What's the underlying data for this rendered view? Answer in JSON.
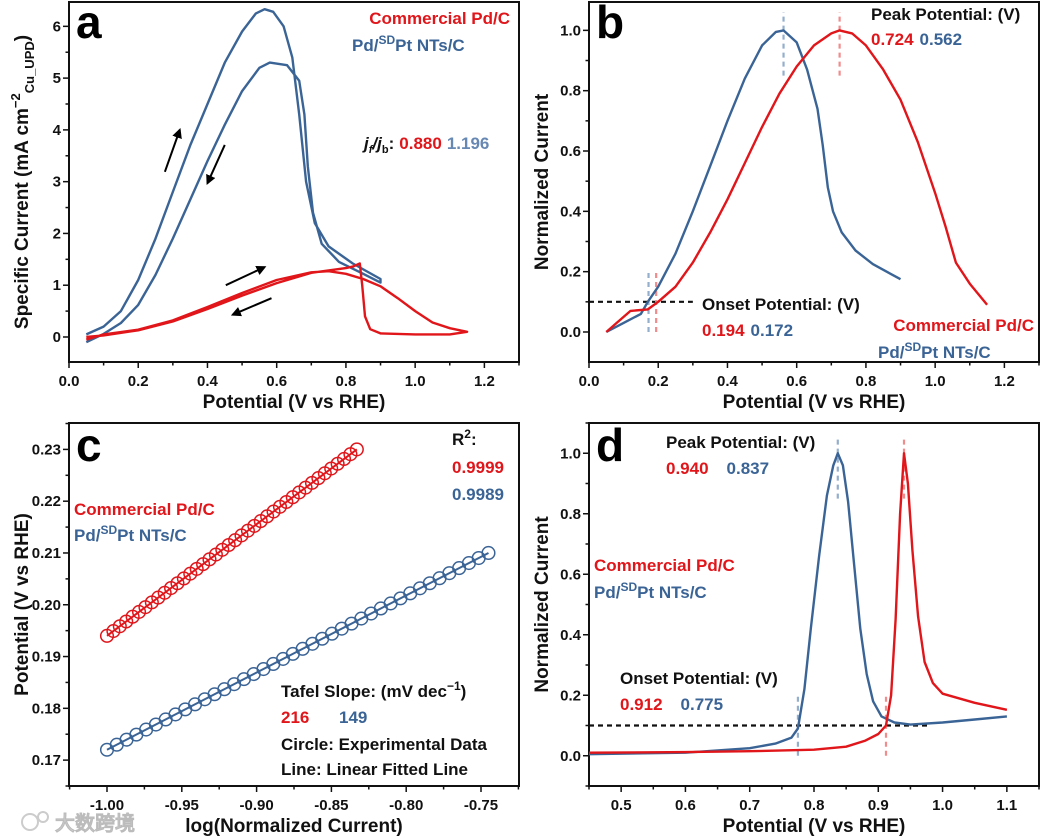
{
  "colors": {
    "red": "#e0161b",
    "blue": "#3b6496",
    "red_dash": "#f08c8c",
    "blue_dash": "#94aecd",
    "black": "#111111"
  },
  "watermark": "大数跨境",
  "chart_data": [
    {
      "id": "a",
      "type": "line",
      "panel_label": "a",
      "xlabel": "Potential (V vs RHE)",
      "ylabel": {
        "main": "Specific Current (mA cm",
        "sup": "−2",
        "sub": "Cu_UPD",
        "close": ")"
      },
      "xlim": [
        0,
        1.3
      ],
      "ylim": [
        -0.483,
        6.47
      ],
      "xticks": [
        "0.0",
        "0.2",
        "0.4",
        "0.6",
        "0.8",
        "1.0",
        "1.2"
      ],
      "yticks": [
        "0",
        "1",
        "2",
        "3",
        "4",
        "5",
        "6"
      ],
      "legend": [
        {
          "text": "Commercial Pd/C",
          "color": "red"
        },
        {
          "pre": "Pd/",
          "sup": "SD",
          "post": "Pt NTs/C",
          "color": "blue"
        }
      ],
      "ratio": {
        "j": "j",
        "f": "f",
        "slash": "/",
        "b": "b",
        "colon": ":",
        "values": [
          "0.880",
          "1.196"
        ]
      },
      "series": [
        {
          "name": "Pd/SDPt NTs/C",
          "color": "blue",
          "points": [
            [
              0.05,
              0.05
            ],
            [
              0.1,
              0.2
            ],
            [
              0.15,
              0.5
            ],
            [
              0.2,
              1.1
            ],
            [
              0.25,
              1.9
            ],
            [
              0.3,
              2.8
            ],
            [
              0.35,
              3.7
            ],
            [
              0.4,
              4.5
            ],
            [
              0.45,
              5.3
            ],
            [
              0.5,
              5.9
            ],
            [
              0.54,
              6.25
            ],
            [
              0.565,
              6.33
            ],
            [
              0.59,
              6.28
            ],
            [
              0.62,
              6.0
            ],
            [
              0.645,
              5.4
            ],
            [
              0.665,
              4.3
            ],
            [
              0.685,
              3.0
            ],
            [
              0.71,
              2.2
            ],
            [
              0.75,
              1.75
            ],
            [
              0.82,
              1.42
            ],
            [
              0.9,
              1.12
            ],
            [
              0.9,
              1.05
            ],
            [
              0.85,
              1.22
            ],
            [
              0.78,
              1.45
            ],
            [
              0.73,
              1.8
            ],
            [
              0.705,
              2.4
            ],
            [
              0.69,
              3.3
            ],
            [
              0.68,
              4.3
            ],
            [
              0.665,
              4.95
            ],
            [
              0.63,
              5.25
            ],
            [
              0.58,
              5.3
            ],
            [
              0.55,
              5.2
            ],
            [
              0.5,
              4.75
            ],
            [
              0.45,
              4.1
            ],
            [
              0.4,
              3.4
            ],
            [
              0.35,
              2.65
            ],
            [
              0.3,
              1.9
            ],
            [
              0.25,
              1.2
            ],
            [
              0.2,
              0.62
            ],
            [
              0.15,
              0.27
            ],
            [
              0.1,
              0.06
            ],
            [
              0.05,
              -0.1
            ]
          ]
        },
        {
          "name": "Commercial Pd/C",
          "color": "red",
          "points": [
            [
              0.05,
              -0.05
            ],
            [
              0.1,
              0.05
            ],
            [
              0.2,
              0.14
            ],
            [
              0.3,
              0.32
            ],
            [
              0.4,
              0.58
            ],
            [
              0.5,
              0.85
            ],
            [
              0.6,
              1.1
            ],
            [
              0.7,
              1.25
            ],
            [
              0.75,
              1.27
            ],
            [
              0.8,
              1.22
            ],
            [
              0.85,
              1.12
            ],
            [
              0.9,
              0.98
            ],
            [
              0.95,
              0.75
            ],
            [
              1.0,
              0.5
            ],
            [
              1.05,
              0.28
            ],
            [
              1.1,
              0.17
            ],
            [
              1.15,
              0.1
            ],
            [
              1.1,
              0.05
            ],
            [
              1.0,
              0.05
            ],
            [
              0.9,
              0.07
            ],
            [
              0.87,
              0.15
            ],
            [
              0.855,
              0.4
            ],
            [
              0.847,
              1.0
            ],
            [
              0.84,
              1.42
            ],
            [
              0.82,
              1.36
            ],
            [
              0.8,
              1.33
            ],
            [
              0.7,
              1.24
            ],
            [
              0.6,
              1.04
            ],
            [
              0.5,
              0.8
            ],
            [
              0.4,
              0.54
            ],
            [
              0.3,
              0.3
            ],
            [
              0.2,
              0.13
            ],
            [
              0.1,
              0.03
            ],
            [
              0.05,
              0.0
            ]
          ]
        }
      ],
      "arrows": [
        [
          [
            0.277,
            3.19
          ],
          [
            0.32,
            4.0
          ]
        ],
        [
          [
            0.45,
            3.71
          ],
          [
            0.4,
            2.97
          ]
        ],
        [
          [
            0.453,
            1.0
          ],
          [
            0.565,
            1.35
          ]
        ],
        [
          [
            0.585,
            0.75
          ],
          [
            0.473,
            0.43
          ]
        ]
      ]
    },
    {
      "id": "b",
      "type": "line",
      "panel_label": "b",
      "xlabel": "Potential (V vs RHE)",
      "ylabel": "Normalized Current",
      "xlim": [
        0,
        1.3
      ],
      "ylim": [
        -0.0995,
        1.094
      ],
      "xticks": [
        "0.0",
        "0.2",
        "0.4",
        "0.6",
        "0.8",
        "1.0",
        "1.2"
      ],
      "yticks": [
        "0.0",
        "0.2",
        "0.4",
        "0.6",
        "0.8",
        "1.0"
      ],
      "legend": [
        {
          "text": "Commercial Pd/C",
          "color": "red"
        },
        {
          "pre": "Pd/",
          "sup": "SD",
          "post": "Pt NTs/C",
          "color": "blue"
        }
      ],
      "peak": {
        "label": "Peak Potential: (V)",
        "values": [
          "0.724",
          "0.562"
        ]
      },
      "onset": {
        "label": "Onset Potential: (V)",
        "values": [
          "0.194",
          "0.172"
        ]
      },
      "onset_threshold": 0.1,
      "series": [
        {
          "name": "Pd/SDPt NTs/C",
          "color": "blue",
          "points": [
            [
              0.05,
              0
            ],
            [
              0.1,
              0.03
            ],
            [
              0.15,
              0.06
            ],
            [
              0.17,
              0.1
            ],
            [
              0.2,
              0.15
            ],
            [
              0.25,
              0.26
            ],
            [
              0.3,
              0.4
            ],
            [
              0.35,
              0.55
            ],
            [
              0.4,
              0.7
            ],
            [
              0.45,
              0.84
            ],
            [
              0.5,
              0.95
            ],
            [
              0.54,
              0.995
            ],
            [
              0.562,
              1.0
            ],
            [
              0.6,
              0.96
            ],
            [
              0.63,
              0.87
            ],
            [
              0.66,
              0.74
            ],
            [
              0.675,
              0.62
            ],
            [
              0.69,
              0.48
            ],
            [
              0.705,
              0.4
            ],
            [
              0.73,
              0.33
            ],
            [
              0.77,
              0.27
            ],
            [
              0.82,
              0.225
            ],
            [
              0.86,
              0.2
            ],
            [
              0.9,
              0.175
            ]
          ]
        },
        {
          "name": "Commercial Pd/C",
          "color": "red",
          "points": [
            [
              0.05,
              0
            ],
            [
              0.08,
              0.03
            ],
            [
              0.12,
              0.07
            ],
            [
              0.17,
              0.075
            ],
            [
              0.2,
              0.1
            ],
            [
              0.25,
              0.15
            ],
            [
              0.3,
              0.23
            ],
            [
              0.35,
              0.33
            ],
            [
              0.4,
              0.44
            ],
            [
              0.45,
              0.56
            ],
            [
              0.5,
              0.68
            ],
            [
              0.55,
              0.79
            ],
            [
              0.6,
              0.88
            ],
            [
              0.65,
              0.95
            ],
            [
              0.7,
              0.99
            ],
            [
              0.724,
              1.0
            ],
            [
              0.76,
              0.99
            ],
            [
              0.8,
              0.95
            ],
            [
              0.85,
              0.87
            ],
            [
              0.9,
              0.77
            ],
            [
              0.95,
              0.63
            ],
            [
              1.0,
              0.46
            ],
            [
              1.03,
              0.35
            ],
            [
              1.06,
              0.23
            ],
            [
              1.1,
              0.16
            ],
            [
              1.15,
              0.09
            ]
          ]
        }
      ]
    },
    {
      "id": "c",
      "type": "scatter",
      "panel_label": "c",
      "xlabel": "log(Normalized Current)",
      "ylabel": "Potential (V vs RHE)",
      "xlim": [
        -1.0254,
        -0.7246
      ],
      "ylim": [
        0.165,
        0.2351
      ],
      "xticks": [
        "-1.00",
        "-0.95",
        "-0.90",
        "-0.85",
        "-0.80",
        "-0.75"
      ],
      "yticks": [
        "0.17",
        "0.18",
        "0.19",
        "0.20",
        "0.21",
        "0.22",
        "0.23"
      ],
      "legend": [
        {
          "text": "Commercial Pd/C",
          "color": "red"
        },
        {
          "pre": "Pd/",
          "sup": "SD",
          "post": "Pt NTs/C",
          "color": "blue"
        }
      ],
      "r2": {
        "label": "R",
        "sup": "2",
        "colon": ":",
        "values": [
          "0.9999",
          "0.9989"
        ]
      },
      "tafel": {
        "label": "Tafel Slope: (mV dec",
        "sup": "−1",
        "close": ")",
        "values": [
          "216",
          "149"
        ]
      },
      "notes": [
        "Circle: Experimental Data",
        "Line: Linear Fitted Line"
      ],
      "series": [
        {
          "name": "Commercial Pd/C",
          "color": "red",
          "x_range": [
            -1.0,
            -0.833
          ],
          "y_range": [
            0.194,
            0.23
          ],
          "n_points": 40,
          "tafel_slope_mV_dec": 216
        },
        {
          "name": "Pd/SDPt NTs/C",
          "color": "blue",
          "x_range": [
            -1.0,
            -0.745
          ],
          "y_range": [
            0.172,
            0.21
          ],
          "n_points": 40,
          "tafel_slope_mV_dec": 149
        }
      ]
    },
    {
      "id": "d",
      "type": "line",
      "panel_label": "d",
      "xlabel": "Potential (V vs RHE)",
      "ylabel": "Normalized Current",
      "xlim": [
        0.45,
        1.15
      ],
      "ylim": [
        -0.1,
        1.1
      ],
      "xticks": [
        "0.5",
        "0.6",
        "0.7",
        "0.8",
        "0.9",
        "1.0",
        "1.1"
      ],
      "yticks": [
        "0.0",
        "0.2",
        "0.4",
        "0.6",
        "0.8",
        "1.0"
      ],
      "legend": [
        {
          "text": "Commercial Pd/C",
          "color": "red"
        },
        {
          "pre": "Pd/",
          "sup": "SD",
          "post": "Pt NTs/C",
          "color": "blue"
        }
      ],
      "peak": {
        "label": "Peak Potential: (V)",
        "values": [
          "0.940",
          "0.837"
        ]
      },
      "onset": {
        "label": "Onset Potential: (V)",
        "values": [
          "0.912",
          "0.775"
        ]
      },
      "onset_threshold": 0.1,
      "series": [
        {
          "name": "Pd/SDPt NTs/C",
          "color": "blue",
          "points": [
            [
              0.45,
              0.005
            ],
            [
              0.6,
              0.01
            ],
            [
              0.7,
              0.025
            ],
            [
              0.74,
              0.04
            ],
            [
              0.765,
              0.06
            ],
            [
              0.775,
              0.09
            ],
            [
              0.785,
              0.22
            ],
            [
              0.795,
              0.42
            ],
            [
              0.808,
              0.66
            ],
            [
              0.82,
              0.86
            ],
            [
              0.83,
              0.96
            ],
            [
              0.837,
              1.0
            ],
            [
              0.845,
              0.96
            ],
            [
              0.853,
              0.84
            ],
            [
              0.862,
              0.64
            ],
            [
              0.872,
              0.42
            ],
            [
              0.882,
              0.27
            ],
            [
              0.892,
              0.18
            ],
            [
              0.905,
              0.13
            ],
            [
              0.925,
              0.11
            ],
            [
              0.95,
              0.103
            ],
            [
              1.0,
              0.11
            ],
            [
              1.05,
              0.12
            ],
            [
              1.1,
              0.13
            ]
          ]
        },
        {
          "name": "Commercial Pd/C",
          "color": "red",
          "points": [
            [
              0.45,
              0.01
            ],
            [
              0.6,
              0.012
            ],
            [
              0.7,
              0.015
            ],
            [
              0.8,
              0.02
            ],
            [
              0.85,
              0.03
            ],
            [
              0.88,
              0.05
            ],
            [
              0.9,
              0.072
            ],
            [
              0.912,
              0.1
            ],
            [
              0.92,
              0.2
            ],
            [
              0.927,
              0.45
            ],
            [
              0.934,
              0.8
            ],
            [
              0.94,
              1.0
            ],
            [
              0.946,
              0.9
            ],
            [
              0.953,
              0.68
            ],
            [
              0.962,
              0.46
            ],
            [
              0.972,
              0.31
            ],
            [
              0.985,
              0.24
            ],
            [
              1.0,
              0.205
            ],
            [
              1.05,
              0.175
            ],
            [
              1.1,
              0.152
            ]
          ]
        }
      ]
    }
  ]
}
